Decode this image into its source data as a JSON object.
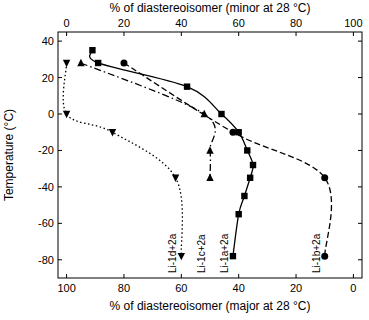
{
  "chart_data": {
    "type": "line",
    "x_label": "% of diastereoisomer (major at 28 °C)",
    "x2_label": "% of diastereoisomer (minor at 28 °C)",
    "y_label": "Temperature (°C)",
    "xlim": [
      103,
      -3
    ],
    "xticks": [
      100,
      80,
      60,
      40,
      20,
      0
    ],
    "x2lim": [
      -3,
      103
    ],
    "x2ticks": [
      0,
      20,
      40,
      60,
      80,
      100
    ],
    "ylim": [
      -90,
      45
    ],
    "yticks": [
      -80,
      -60,
      -40,
      -20,
      0,
      20,
      40
    ],
    "series": [
      {
        "name": "Li-1a+2a",
        "color": "#000000",
        "marker": "square",
        "line_style": "solid",
        "x": [
          91,
          89,
          58,
          46,
          40,
          37,
          35,
          36,
          38,
          40,
          42
        ],
        "values": [
          35,
          28,
          15,
          0,
          -10,
          -20,
          -28,
          -35,
          -45,
          -55,
          -78
        ]
      },
      {
        "name": "Li-1b+2a",
        "color": "#000000",
        "marker": "circle",
        "line_style": "dashed",
        "x": [
          80,
          42,
          10,
          10
        ],
        "values": [
          28,
          -10,
          -35,
          -78
        ]
      },
      {
        "name": "Li-1c+2a",
        "color": "#000000",
        "marker": "triangle-up",
        "line_style": "dashdot",
        "x": [
          95,
          52,
          50,
          50
        ],
        "values": [
          28,
          0,
          -20,
          -35
        ]
      },
      {
        "name": "Li-1d+2a",
        "color": "#000000",
        "marker": "triangle-down",
        "line_style": "dotted",
        "x": [
          100,
          100,
          84,
          62,
          60
        ],
        "values": [
          28,
          0,
          -10,
          -35,
          -78
        ]
      }
    ]
  }
}
